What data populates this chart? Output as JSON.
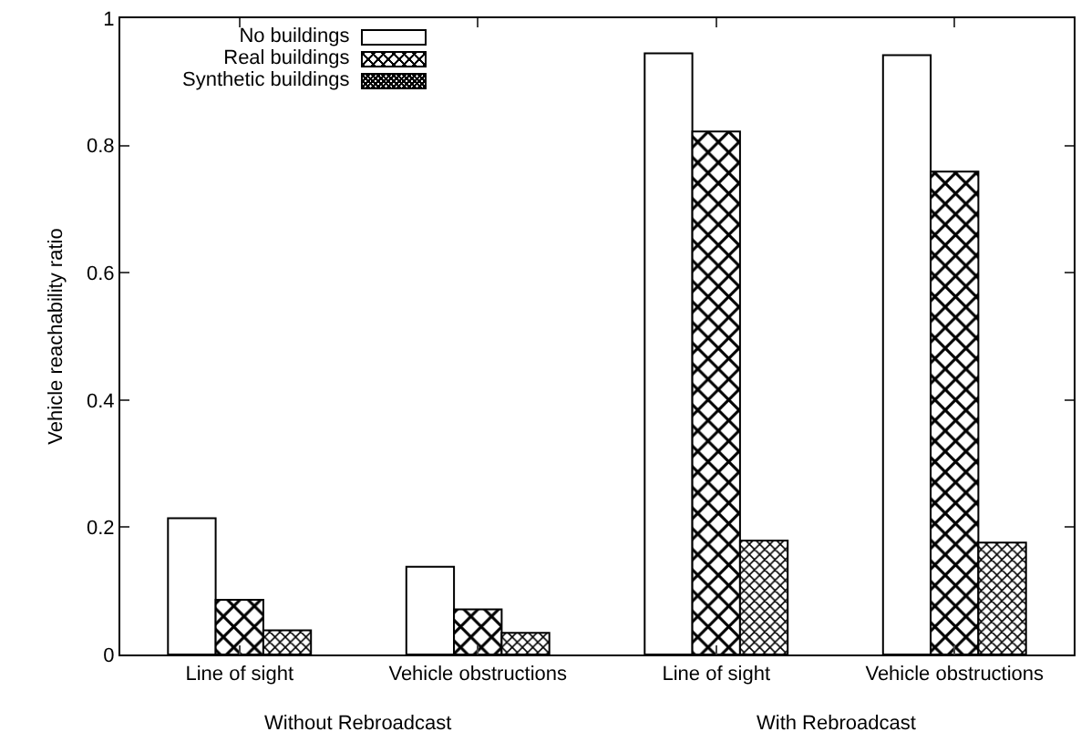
{
  "chart_data": {
    "type": "bar",
    "ylabel": "Vehicle reachability ratio",
    "categories": [
      "Line of sight",
      "Vehicle obstructions",
      "Line of sight",
      "Vehicle obstructions"
    ],
    "series": [
      {
        "name": "No buildings",
        "color": "#ffffff",
        "values": [
          0.214,
          0.138,
          0.945,
          0.942
        ]
      },
      {
        "name": "Real buildings",
        "color": "#000000",
        "values": [
          0.086,
          0.071,
          0.822,
          0.759
        ]
      },
      {
        "name": "Synthetic buildings",
        "color": "#000000",
        "values": [
          0.038,
          0.034,
          0.179,
          0.176
        ]
      }
    ],
    "ylim": [
      0,
      1
    ],
    "yticks": [
      0,
      {
        "value": 0.2,
        "label": "0.2"
      },
      {
        "value": 0.4,
        "label": "0.4"
      },
      {
        "value": 0.6,
        "label": "0.6"
      },
      {
        "value": 0.8,
        "label": "0.8"
      },
      1
    ],
    "grid": false,
    "legend": "top left",
    "annotations": [
      "Without Rebroadcast",
      "With Rebroadcast"
    ]
  }
}
